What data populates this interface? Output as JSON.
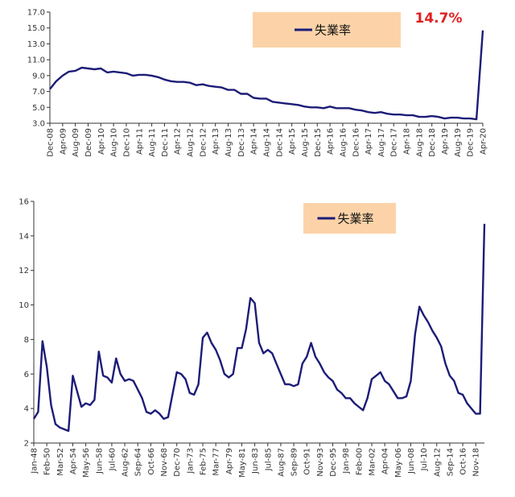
{
  "chart_data": [
    {
      "type": "line",
      "categories": [
        "Dec-08",
        null,
        "Apr-09",
        null,
        "Aug-09",
        null,
        "Dec-09",
        null,
        "Apr-10",
        null,
        "Aug-10",
        null,
        "Dec-10",
        null,
        "Apr-11",
        null,
        "Aug-11",
        null,
        "Dec-11",
        null,
        "Apr-12",
        null,
        "Aug-12",
        null,
        "Dec-12",
        null,
        "Apr-13",
        null,
        "Aug-13",
        null,
        "Dec-13",
        null,
        "Apr-14",
        null,
        "Aug-14",
        null,
        "Dec-14",
        null,
        "Apr-15",
        null,
        "Aug-15",
        null,
        "Dec-15",
        null,
        "Apr-16",
        null,
        "Aug-16",
        null,
        "Dec-16",
        null,
        "Apr-17",
        null,
        "Aug-17",
        null,
        "Dec-17",
        null,
        "Apr-18",
        null,
        "Aug-18",
        null,
        "Dec-18",
        null,
        "Apr-19",
        null,
        "Aug-19",
        null,
        "Dec-19",
        null,
        "Apr-20"
      ],
      "series": [
        {
          "name": "失業率",
          "color": "#1c1c78",
          "values": [
            7.3,
            8.3,
            9.0,
            9.5,
            9.6,
            10.0,
            9.9,
            9.8,
            9.9,
            9.4,
            9.5,
            9.4,
            9.3,
            9.0,
            9.1,
            9.1,
            9.0,
            8.8,
            8.5,
            8.3,
            8.2,
            8.2,
            8.1,
            7.8,
            7.9,
            7.7,
            7.6,
            7.5,
            7.2,
            7.2,
            6.7,
            6.7,
            6.2,
            6.1,
            6.1,
            5.7,
            5.6,
            5.5,
            5.4,
            5.3,
            5.1,
            5.0,
            5.0,
            4.9,
            5.1,
            4.9,
            4.9,
            4.9,
            4.7,
            4.6,
            4.4,
            4.3,
            4.4,
            4.2,
            4.1,
            4.1,
            4.0,
            4.0,
            3.8,
            3.8,
            3.9,
            3.8,
            3.6,
            3.7,
            3.7,
            3.6,
            3.6,
            3.5,
            14.7
          ]
        }
      ],
      "ylim": [
        3,
        17
      ],
      "yticks": [
        {
          "value": 3,
          "label": "3.0"
        },
        {
          "value": 5,
          "label": "5.0"
        },
        {
          "value": 7,
          "label": "7.0"
        },
        {
          "value": 9,
          "label": "9.0"
        },
        {
          "value": 11,
          "label": "11.0"
        },
        {
          "value": 13,
          "label": "13.0"
        },
        {
          "value": 15,
          "label": "15.0"
        },
        {
          "value": 17,
          "label": "17.0"
        }
      ],
      "annotation": "14.7%"
    },
    {
      "type": "line",
      "categories": [
        "Jan-48",
        null,
        null,
        "Feb-50",
        null,
        null,
        "Mar-52",
        null,
        null,
        "Apr-54",
        null,
        null,
        "May-56",
        null,
        null,
        "Jun-58",
        null,
        null,
        "Jul-60",
        null,
        null,
        "Aug-62",
        null,
        null,
        "Sep-64",
        null,
        null,
        "Oct-66",
        null,
        null,
        "Nov-68",
        null,
        null,
        "Dec-70",
        null,
        null,
        "Jan-73",
        null,
        null,
        "Feb-75",
        null,
        null,
        "Mar-77",
        null,
        null,
        "Apr-79",
        null,
        null,
        "May-81",
        null,
        null,
        "Jun-83",
        null,
        null,
        "Jul-85",
        null,
        null,
        "Aug-87",
        null,
        null,
        "Sep-89",
        null,
        null,
        "Oct-91",
        null,
        null,
        "Nov-93",
        null,
        null,
        "Dec-95",
        null,
        null,
        "Jan-98",
        null,
        null,
        "Feb-00",
        null,
        null,
        "Mar-02",
        null,
        null,
        "Apr-04",
        null,
        null,
        "May-06",
        null,
        null,
        "Jun-08",
        null,
        null,
        "Jul-10",
        null,
        null,
        "Aug-12",
        null,
        null,
        "Sep-14",
        null,
        null,
        "Oct-16",
        null,
        null,
        "Nov-18",
        null,
        null
      ],
      "series": [
        {
          "name": "失業率",
          "color": "#1c1c78",
          "values": [
            3.4,
            3.8,
            7.9,
            6.4,
            4.2,
            3.1,
            2.9,
            2.8,
            2.7,
            5.9,
            5.0,
            4.1,
            4.3,
            4.2,
            4.5,
            7.3,
            5.9,
            5.8,
            5.5,
            6.9,
            6.0,
            5.6,
            5.7,
            5.6,
            5.1,
            4.6,
            3.8,
            3.7,
            3.9,
            3.7,
            3.4,
            3.5,
            4.8,
            6.1,
            6.0,
            5.7,
            4.9,
            4.8,
            5.4,
            8.1,
            8.4,
            7.8,
            7.4,
            6.8,
            6.0,
            5.8,
            6.0,
            7.5,
            7.5,
            8.6,
            10.4,
            10.1,
            7.8,
            7.2,
            7.4,
            7.2,
            6.6,
            6.0,
            5.4,
            5.4,
            5.3,
            5.4,
            6.6,
            7.0,
            7.8,
            7.0,
            6.6,
            6.1,
            5.8,
            5.6,
            5.1,
            4.9,
            4.6,
            4.6,
            4.3,
            4.1,
            3.9,
            4.6,
            5.7,
            5.9,
            6.1,
            5.6,
            5.4,
            5.0,
            4.6,
            4.6,
            4.7,
            5.6,
            8.3,
            9.9,
            9.4,
            9.0,
            8.5,
            8.1,
            7.6,
            6.6,
            5.9,
            5.6,
            4.9,
            4.8,
            4.3,
            4.0,
            3.7,
            3.7,
            14.7
          ]
        }
      ],
      "ylim": [
        2,
        16
      ],
      "yticks": [
        2,
        4,
        6,
        8,
        10,
        12,
        14,
        16
      ]
    }
  ]
}
